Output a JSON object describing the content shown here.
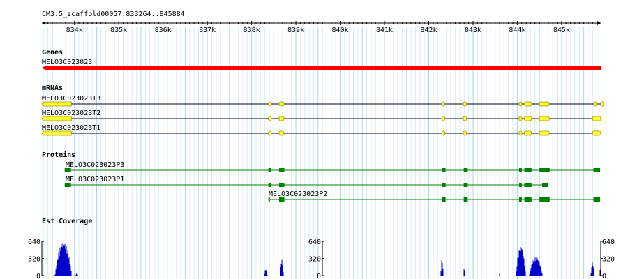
{
  "ruler": {
    "label": "CM3.5_scaffold00057:833264..845884",
    "start": 833264,
    "end": 845884,
    "ticks": [
      "834k",
      "835k",
      "836k",
      "837k",
      "838k",
      "839k",
      "840k",
      "841k",
      "842k",
      "843k",
      "844k",
      "845k"
    ],
    "tick_values": [
      834000,
      835000,
      836000,
      837000,
      838000,
      839000,
      840000,
      841000,
      842000,
      843000,
      844000,
      845000
    ]
  },
  "tracks": {
    "genes": {
      "title": "Genes",
      "items": [
        {
          "name": "MELO3C023023",
          "start": 833264,
          "end": 845884,
          "strand": "-"
        }
      ]
    },
    "mrnas": {
      "title": "mRNAs",
      "items": [
        {
          "name": "MELO3C023023T3",
          "start": 833264,
          "end": 845884,
          "exons": [
            [
              833264,
              833930
            ],
            [
              838380,
              838420
            ],
            [
              838620,
              838730
            ],
            [
              842300,
              842360
            ],
            [
              842780,
              842850
            ],
            [
              844040,
              844100
            ],
            [
              844160,
              844320
            ],
            [
              844500,
              844720
            ],
            [
              845720,
              845790
            ],
            [
              845920,
              845884
            ]
          ]
        },
        {
          "name": "MELO3C023023T2",
          "start": 833264,
          "end": 845884,
          "exons": [
            [
              833264,
              833930
            ],
            [
              838380,
              838420
            ],
            [
              838620,
              838730
            ],
            [
              842300,
              842360
            ],
            [
              842780,
              842850
            ],
            [
              844040,
              844100
            ],
            [
              844160,
              844320
            ],
            [
              844500,
              844720
            ],
            [
              845720,
              845790
            ],
            [
              845700,
              845884
            ]
          ]
        },
        {
          "name": "MELO3C023023T1",
          "start": 833264,
          "end": 845884,
          "exons": [
            [
              833264,
              833930
            ],
            [
              838380,
              838420
            ],
            [
              838620,
              838730
            ],
            [
              842300,
              842360
            ],
            [
              842780,
              842850
            ],
            [
              844040,
              844100
            ],
            [
              844160,
              844320
            ],
            [
              844500,
              844720
            ],
            [
              845720,
              845790
            ],
            [
              845700,
              845884
            ]
          ]
        }
      ]
    },
    "proteins": {
      "title": "Proteins",
      "items": [
        {
          "name": "MELO3C023023P3",
          "start": 833780,
          "end": 845870,
          "cds": [
            [
              833780,
              833920
            ],
            [
              838380,
              838440
            ],
            [
              838620,
              838740
            ],
            [
              842300,
              842380
            ],
            [
              842790,
              842880
            ],
            [
              844040,
              844100
            ],
            [
              844160,
              844320
            ],
            [
              844500,
              844730
            ],
            [
              845720,
              845800
            ],
            [
              845720,
              845870
            ]
          ]
        },
        {
          "name": "MELO3C023023P1",
          "start": 833780,
          "end": 844700,
          "cds": [
            [
              833780,
              833920
            ],
            [
              838380,
              838440
            ],
            [
              838620,
              838740
            ],
            [
              842300,
              842380
            ],
            [
              842790,
              842880
            ],
            [
              844040,
              844100
            ],
            [
              844160,
              844320
            ],
            [
              844560,
              844690
            ]
          ]
        },
        {
          "name": "MELO3C023023P2",
          "start": 838380,
          "end": 845870,
          "cds": [
            [
              838380,
              838400
            ],
            [
              838620,
              838740
            ],
            [
              842300,
              842380
            ],
            [
              842790,
              842880
            ],
            [
              844040,
              844100
            ],
            [
              844160,
              844320
            ],
            [
              844500,
              844730
            ],
            [
              845720,
              845800
            ],
            [
              845720,
              845870
            ]
          ]
        }
      ]
    },
    "est": {
      "title": "Est Coverage",
      "axis_labels": [
        "640",
        "320",
        "0"
      ],
      "max": 640,
      "peaks": [
        {
          "center": 833750,
          "width": 380,
          "height": 630
        },
        {
          "center": 834050,
          "width": 60,
          "height": 40
        },
        {
          "center": 838320,
          "width": 70,
          "height": 120
        },
        {
          "center": 838680,
          "width": 80,
          "height": 300
        },
        {
          "center": 842300,
          "width": 60,
          "height": 310
        },
        {
          "center": 842800,
          "width": 40,
          "height": 150
        },
        {
          "center": 843600,
          "width": 30,
          "height": 40
        },
        {
          "center": 844080,
          "width": 220,
          "height": 560
        },
        {
          "center": 844420,
          "width": 300,
          "height": 350
        },
        {
          "center": 845700,
          "width": 80,
          "height": 250
        },
        {
          "center": 845900,
          "width": 90,
          "height": 220
        }
      ]
    }
  },
  "colors": {
    "grid_major": "#a8d8e8",
    "grid_minor": "#d6eef5",
    "gene": "#ff0000",
    "exon_fill": "#ffff33",
    "exon_stroke": "#999900",
    "intron": "#000033",
    "protein": "#008000",
    "coverage": "#0000cc"
  }
}
